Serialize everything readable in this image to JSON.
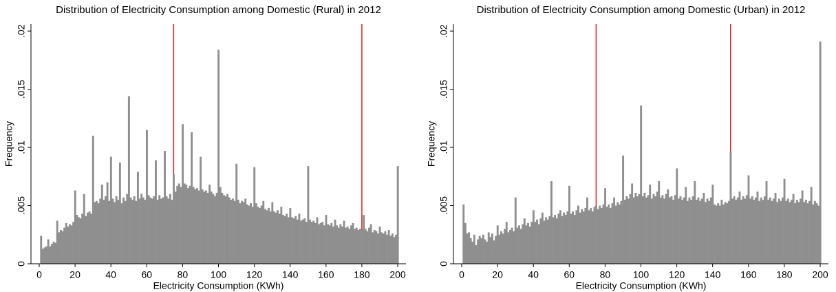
{
  "chart_data": [
    {
      "type": "histogram",
      "title": "Distribution of Electricity Consumption among Domestic (Rural) in 2012",
      "xlabel": "Electricity Consumption (KWh)",
      "ylabel": "Frequency",
      "color": "#8f8f8f",
      "vlines": [
        75,
        180
      ],
      "vline_color": "#e0201b",
      "xlim": [
        -4.6,
        204.6
      ],
      "ylim": [
        0,
        0.0206
      ],
      "xticks": [
        0,
        20,
        40,
        60,
        80,
        100,
        120,
        140,
        160,
        180,
        200
      ],
      "yticks": [
        0,
        {
          "value": 0.005,
          "label": ".005"
        },
        {
          "value": 0.01,
          "label": ".01"
        },
        {
          "value": 0.015,
          "label": ".015"
        },
        {
          "value": 0.02,
          "label": ".02"
        }
      ],
      "bins": [
        0.5,
        1.5,
        2.5,
        3.5,
        4.5,
        5.5,
        6.5,
        7.5,
        8.5,
        9.5,
        10.5,
        11.5,
        12.5,
        13.5,
        14.5,
        15.5,
        16.5,
        17.5,
        18.5,
        19.5,
        20.5,
        21.5,
        22.5,
        23.5,
        24.5,
        25.5,
        26.5,
        27.5,
        28.5,
        29.5,
        30.5,
        31.5,
        32.5,
        33.5,
        34.5,
        35.5,
        36.5,
        37.5,
        38.5,
        39.5,
        40.5,
        41.5,
        42.5,
        43.5,
        44.5,
        45.5,
        46.5,
        47.5,
        48.5,
        49.5,
        50.5,
        51.5,
        52.5,
        53.5,
        54.5,
        55.5,
        56.5,
        57.5,
        58.5,
        59.5,
        60.5,
        61.5,
        62.5,
        63.5,
        64.5,
        65.5,
        66.5,
        67.5,
        68.5,
        69.5,
        70.5,
        71.5,
        72.5,
        73.5,
        74.5,
        75.5,
        76.5,
        77.5,
        78.5,
        79.5,
        80.5,
        81.5,
        82.5,
        83.5,
        84.5,
        85.5,
        86.5,
        87.5,
        88.5,
        89.5,
        90.5,
        91.5,
        92.5,
        93.5,
        94.5,
        95.5,
        96.5,
        97.5,
        98.5,
        99.5,
        100.5,
        101.5,
        102.5,
        103.5,
        104.5,
        105.5,
        106.5,
        107.5,
        108.5,
        109.5,
        110.5,
        111.5,
        112.5,
        113.5,
        114.5,
        115.5,
        116.5,
        117.5,
        118.5,
        119.5,
        120.5,
        121.5,
        122.5,
        123.5,
        124.5,
        125.5,
        126.5,
        127.5,
        128.5,
        129.5,
        130.5,
        131.5,
        132.5,
        133.5,
        134.5,
        135.5,
        136.5,
        137.5,
        138.5,
        139.5,
        140.5,
        141.5,
        142.5,
        143.5,
        144.5,
        145.5,
        146.5,
        147.5,
        148.5,
        149.5,
        150.5,
        151.5,
        152.5,
        153.5,
        154.5,
        155.5,
        156.5,
        157.5,
        158.5,
        159.5,
        160.5,
        161.5,
        162.5,
        163.5,
        164.5,
        165.5,
        166.5,
        167.5,
        168.5,
        169.5,
        170.5,
        171.5,
        172.5,
        173.5,
        174.5,
        175.5,
        176.5,
        177.5,
        178.5,
        179.5,
        180.5,
        181.5,
        182.5,
        183.5,
        184.5,
        185.5,
        186.5,
        187.5,
        188.5,
        189.5,
        190.5,
        191.5,
        192.5,
        193.5,
        194.5,
        195.5,
        196.5,
        197.5,
        198.5,
        199.5,
        200.5
      ],
      "values": [
        0.0024,
        0.0013,
        0.0014,
        0.0015,
        0.0021,
        0.0015,
        0.0017,
        0.0019,
        0.0018,
        0.0037,
        0.0027,
        0.0029,
        0.0028,
        0.0031,
        0.0035,
        0.0032,
        0.0034,
        0.0033,
        0.0036,
        0.0063,
        0.0042,
        0.004,
        0.0039,
        0.0043,
        0.006,
        0.0041,
        0.0044,
        0.0045,
        0.0043,
        0.011,
        0.0053,
        0.0054,
        0.0052,
        0.0056,
        0.0068,
        0.0055,
        0.0058,
        0.007,
        0.0054,
        0.0092,
        0.0056,
        0.0053,
        0.0058,
        0.0055,
        0.0087,
        0.0052,
        0.0057,
        0.0054,
        0.006,
        0.0144,
        0.0057,
        0.0055,
        0.0058,
        0.0054,
        0.0079,
        0.0056,
        0.006,
        0.0057,
        0.0055,
        0.0115,
        0.0059,
        0.0057,
        0.0056,
        0.0058,
        0.0089,
        0.0055,
        0.0059,
        0.0056,
        0.0057,
        0.0097,
        0.0058,
        0.0056,
        0.006,
        0.0055,
        0.0077,
        0.0062,
        0.0067,
        0.0069,
        0.0066,
        0.012,
        0.0069,
        0.0068,
        0.0065,
        0.0067,
        0.0113,
        0.0066,
        0.0064,
        0.0065,
        0.0063,
        0.0092,
        0.0064,
        0.0062,
        0.0063,
        0.0061,
        0.0068,
        0.0062,
        0.006,
        0.0058,
        0.0061,
        0.0184,
        0.0066,
        0.0061,
        0.0059,
        0.0058,
        0.006,
        0.0057,
        0.0055,
        0.0056,
        0.0054,
        0.0086,
        0.0055,
        0.0052,
        0.0054,
        0.0053,
        0.0056,
        0.0051,
        0.005,
        0.0052,
        0.0049,
        0.0083,
        0.0052,
        0.0049,
        0.0048,
        0.005,
        0.0054,
        0.0047,
        0.0046,
        0.0048,
        0.0045,
        0.0053,
        0.0045,
        0.0044,
        0.0046,
        0.0043,
        0.0049,
        0.0042,
        0.0041,
        0.0043,
        0.004,
        0.0048,
        0.004,
        0.0039,
        0.0041,
        0.0038,
        0.0043,
        0.0037,
        0.0038,
        0.0039,
        0.0036,
        0.0084,
        0.0038,
        0.0036,
        0.0037,
        0.0035,
        0.004,
        0.0034,
        0.0035,
        0.0036,
        0.0033,
        0.0042,
        0.0034,
        0.0033,
        0.0035,
        0.0032,
        0.0038,
        0.0033,
        0.0031,
        0.0034,
        0.0032,
        0.0037,
        0.0031,
        0.0032,
        0.003,
        0.0033,
        0.0035,
        0.003,
        0.0031,
        0.0029,
        0.003,
        0.0029,
        0.0042,
        0.003,
        0.0028,
        0.0031,
        0.0034,
        0.0027,
        0.0029,
        0.0028,
        0.0026,
        0.0032,
        0.0027,
        0.0026,
        0.0028,
        0.0025,
        0.0029,
        0.0024,
        0.0026,
        0.0023,
        0.0025,
        0.0084
      ]
    },
    {
      "type": "histogram",
      "title": "Distribution of Electricity Consumption among Domestic (Urban) in 2012",
      "xlabel": "Electricity Consumption (KWh)",
      "ylabel": "Frequency",
      "color": "#8f8f8f",
      "vlines": [
        75,
        150
      ],
      "vline_color": "#e0201b",
      "xlim": [
        -4.6,
        204.6
      ],
      "ylim": [
        0,
        0.0206
      ],
      "xticks": [
        0,
        20,
        40,
        60,
        80,
        100,
        120,
        140,
        160,
        180,
        200
      ],
      "yticks": [
        0,
        {
          "value": 0.005,
          "label": ".005"
        },
        {
          "value": 0.01,
          "label": ".01"
        },
        {
          "value": 0.015,
          "label": ".015"
        },
        {
          "value": 0.02,
          "label": ".02"
        }
      ],
      "bins": [
        0.5,
        1.5,
        2.5,
        3.5,
        4.5,
        5.5,
        6.5,
        7.5,
        8.5,
        9.5,
        10.5,
        11.5,
        12.5,
        13.5,
        14.5,
        15.5,
        16.5,
        17.5,
        18.5,
        19.5,
        20.5,
        21.5,
        22.5,
        23.5,
        24.5,
        25.5,
        26.5,
        27.5,
        28.5,
        29.5,
        30.5,
        31.5,
        32.5,
        33.5,
        34.5,
        35.5,
        36.5,
        37.5,
        38.5,
        39.5,
        40.5,
        41.5,
        42.5,
        43.5,
        44.5,
        45.5,
        46.5,
        47.5,
        48.5,
        49.5,
        50.5,
        51.5,
        52.5,
        53.5,
        54.5,
        55.5,
        56.5,
        57.5,
        58.5,
        59.5,
        60.5,
        61.5,
        62.5,
        63.5,
        64.5,
        65.5,
        66.5,
        67.5,
        68.5,
        69.5,
        70.5,
        71.5,
        72.5,
        73.5,
        74.5,
        75.5,
        76.5,
        77.5,
        78.5,
        79.5,
        80.5,
        81.5,
        82.5,
        83.5,
        84.5,
        85.5,
        86.5,
        87.5,
        88.5,
        89.5,
        90.5,
        91.5,
        92.5,
        93.5,
        94.5,
        95.5,
        96.5,
        97.5,
        98.5,
        99.5,
        100.5,
        101.5,
        102.5,
        103.5,
        104.5,
        105.5,
        106.5,
        107.5,
        108.5,
        109.5,
        110.5,
        111.5,
        112.5,
        113.5,
        114.5,
        115.5,
        116.5,
        117.5,
        118.5,
        119.5,
        120.5,
        121.5,
        122.5,
        123.5,
        124.5,
        125.5,
        126.5,
        127.5,
        128.5,
        129.5,
        130.5,
        131.5,
        132.5,
        133.5,
        134.5,
        135.5,
        136.5,
        137.5,
        138.5,
        139.5,
        140.5,
        141.5,
        142.5,
        143.5,
        144.5,
        145.5,
        146.5,
        147.5,
        148.5,
        149.5,
        150.5,
        151.5,
        152.5,
        153.5,
        154.5,
        155.5,
        156.5,
        157.5,
        158.5,
        159.5,
        160.5,
        161.5,
        162.5,
        163.5,
        164.5,
        165.5,
        166.5,
        167.5,
        168.5,
        169.5,
        170.5,
        171.5,
        172.5,
        173.5,
        174.5,
        175.5,
        176.5,
        177.5,
        178.5,
        179.5,
        180.5,
        181.5,
        182.5,
        183.5,
        184.5,
        185.5,
        186.5,
        187.5,
        188.5,
        189.5,
        190.5,
        191.5,
        192.5,
        193.5,
        194.5,
        195.5,
        196.5,
        197.5,
        198.5,
        199.5,
        200.5
      ],
      "values": [
        0.0051,
        0.0035,
        0.0026,
        0.0027,
        0.0022,
        0.0019,
        0.0025,
        0.0016,
        0.0021,
        0.0024,
        0.0022,
        0.0025,
        0.0021,
        0.0019,
        0.0027,
        0.0023,
        0.0026,
        0.002,
        0.0024,
        0.0033,
        0.0025,
        0.0028,
        0.0026,
        0.003,
        0.0036,
        0.0027,
        0.0029,
        0.0031,
        0.0028,
        0.0057,
        0.0031,
        0.0033,
        0.003,
        0.0034,
        0.0039,
        0.0033,
        0.0035,
        0.0032,
        0.0036,
        0.0046,
        0.0036,
        0.0038,
        0.0034,
        0.0039,
        0.0044,
        0.0037,
        0.004,
        0.0038,
        0.0041,
        0.0071,
        0.004,
        0.0042,
        0.0039,
        0.0043,
        0.0046,
        0.0041,
        0.0044,
        0.0042,
        0.0045,
        0.0067,
        0.0043,
        0.0045,
        0.0042,
        0.0046,
        0.005,
        0.0044,
        0.0047,
        0.0045,
        0.0048,
        0.0057,
        0.0046,
        0.0048,
        0.0045,
        0.0049,
        0.005,
        0.0047,
        0.005,
        0.0048,
        0.0051,
        0.0065,
        0.0049,
        0.0051,
        0.0048,
        0.0052,
        0.0057,
        0.005,
        0.0053,
        0.0051,
        0.0054,
        0.0093,
        0.0055,
        0.0058,
        0.0056,
        0.006,
        0.0069,
        0.0057,
        0.0061,
        0.0058,
        0.006,
        0.0136,
        0.0058,
        0.0061,
        0.0057,
        0.0059,
        0.0068,
        0.0056,
        0.006,
        0.0058,
        0.0062,
        0.0071,
        0.0057,
        0.0059,
        0.0056,
        0.006,
        0.0064,
        0.0057,
        0.0058,
        0.0055,
        0.0059,
        0.0082,
        0.0056,
        0.0058,
        0.0055,
        0.0057,
        0.0066,
        0.0054,
        0.0057,
        0.0055,
        0.0058,
        0.0071,
        0.0055,
        0.0057,
        0.0054,
        0.0056,
        0.0061,
        0.0053,
        0.0056,
        0.0054,
        0.0057,
        0.0068,
        0.0051,
        0.005,
        0.0052,
        0.005,
        0.0055,
        0.0051,
        0.0053,
        0.0052,
        0.0054,
        0.0096,
        0.0056,
        0.0058,
        0.0055,
        0.0057,
        0.0062,
        0.0055,
        0.0058,
        0.0056,
        0.0059,
        0.0076,
        0.0056,
        0.0058,
        0.0055,
        0.0057,
        0.0062,
        0.0054,
        0.0057,
        0.0055,
        0.0058,
        0.0071,
        0.0055,
        0.0057,
        0.0054,
        0.0056,
        0.0061,
        0.0053,
        0.0056,
        0.0054,
        0.0057,
        0.0073,
        0.0054,
        0.0056,
        0.0053,
        0.0055,
        0.006,
        0.0052,
        0.0055,
        0.0053,
        0.0056,
        0.0063,
        0.0053,
        0.0055,
        0.0052,
        0.0054,
        0.0066,
        0.0051,
        0.0054,
        0.0052,
        0.005,
        0.0191
      ]
    }
  ]
}
